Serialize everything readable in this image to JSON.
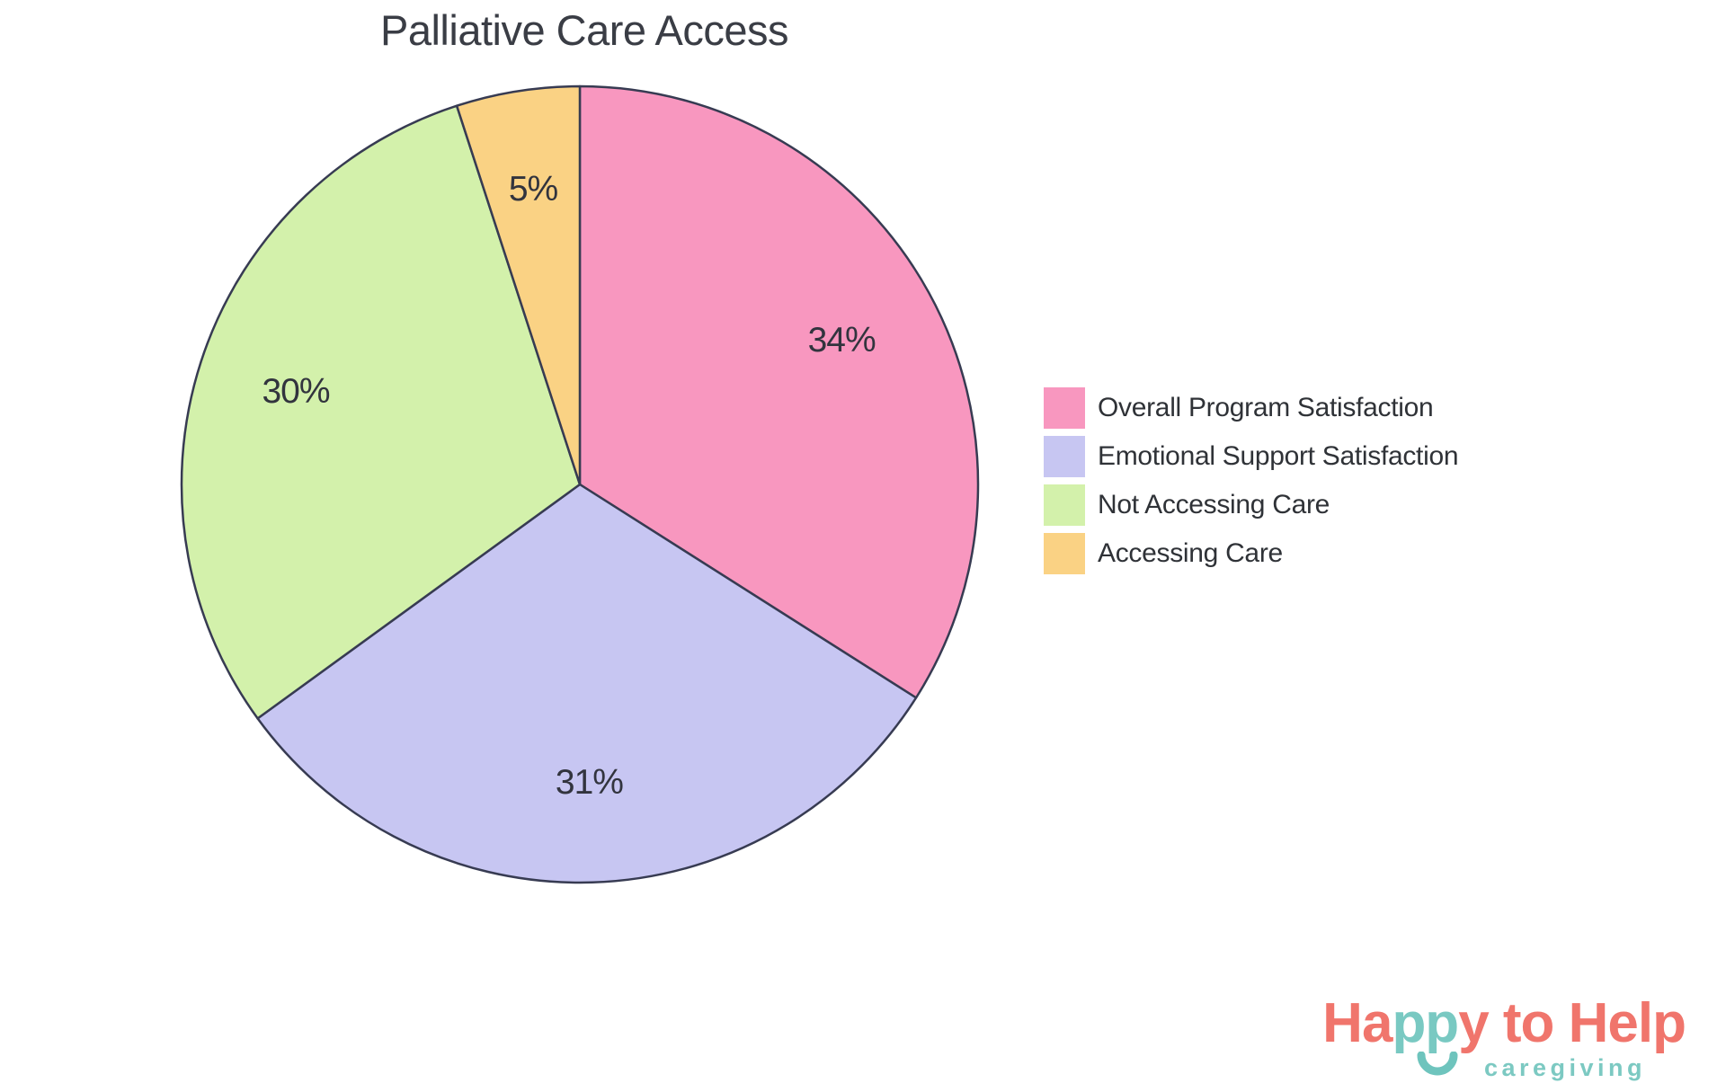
{
  "title": "Palliative Care Access",
  "chart_data": {
    "type": "pie",
    "title": "Palliative Care Access",
    "start_angle_deg": 0,
    "direction": "clockwise",
    "legend_position": "right",
    "outline_color": "#373B52",
    "label_color": "#32343E",
    "slices": [
      {
        "label": "Overall Program Satisfaction",
        "value": 34,
        "pct_label": "34%",
        "color": "#F897BF"
      },
      {
        "label": "Emotional Support Satisfaction",
        "value": 31,
        "pct_label": "31%",
        "color": "#C7C6F2"
      },
      {
        "label": "Not Accessing Care",
        "value": 30,
        "pct_label": "30%",
        "color": "#D3F1AB"
      },
      {
        "label": "Accessing Care",
        "value": 5,
        "pct_label": "5%",
        "color": "#FAD284"
      }
    ]
  },
  "logo": {
    "word_part1": "Ha",
    "word_part2": "pp",
    "word_part3": "y to Help",
    "tagline": "caregiving",
    "coral": "#F0756C",
    "teal": "#79C9C2"
  }
}
